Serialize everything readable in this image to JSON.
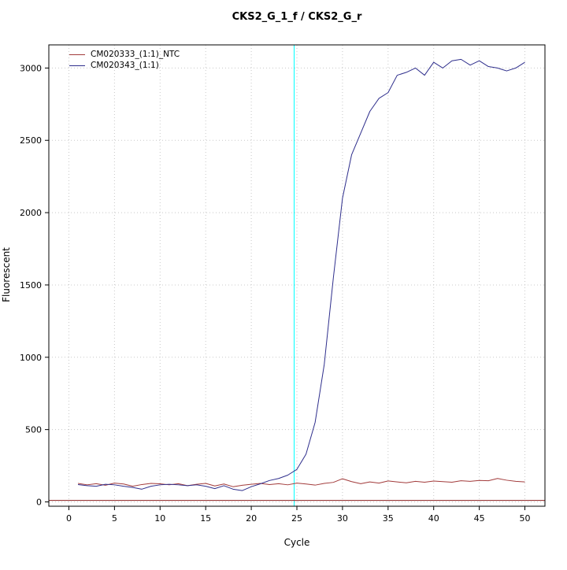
{
  "chart_data": {
    "type": "line",
    "title": "CKS2_G_1_f / CKS2_G_r",
    "xlabel": "Cycle",
    "ylabel": "Fluorescent",
    "xlim": [
      -2.2,
      52.2
    ],
    "ylim": [
      -30,
      3160
    ],
    "xticks": [
      0,
      5,
      10,
      15,
      20,
      25,
      30,
      35,
      40,
      45,
      50
    ],
    "yticks": [
      0,
      500,
      1000,
      1500,
      2000,
      2500,
      3000
    ],
    "grid": "dotted",
    "grid_color": "#c8c8c8",
    "legend_position": "top-left",
    "threshold_line": {
      "y": 10,
      "color": "#8b2020"
    },
    "ct_line": {
      "x": 24.7,
      "color": "#00ffff"
    },
    "x": [
      1,
      2,
      3,
      4,
      5,
      6,
      7,
      8,
      9,
      10,
      11,
      12,
      13,
      14,
      15,
      16,
      17,
      18,
      19,
      20,
      21,
      22,
      23,
      24,
      25,
      26,
      27,
      28,
      29,
      30,
      31,
      32,
      33,
      34,
      35,
      36,
      37,
      38,
      39,
      40,
      41,
      42,
      43,
      44,
      45,
      46,
      47,
      48,
      49,
      50
    ],
    "series": [
      {
        "name": "CM020333_(1:1)_NTC",
        "color": "#a23b3b",
        "values": [
          128,
          118,
          126,
          115,
          130,
          124,
          108,
          120,
          128,
          125,
          118,
          126,
          112,
          122,
          128,
          110,
          124,
          105,
          115,
          122,
          128,
          120,
          126,
          118,
          130,
          124,
          116,
          128,
          135,
          160,
          140,
          126,
          138,
          130,
          145,
          138,
          132,
          142,
          136,
          144,
          140,
          136,
          146,
          142,
          148,
          146,
          162,
          150,
          142,
          138
        ]
      },
      {
        "name": "CM020343_(1:1)",
        "color": "#2e2e8c",
        "values": [
          120,
          112,
          108,
          122,
          118,
          108,
          100,
          88,
          108,
          118,
          122,
          118,
          112,
          118,
          108,
          92,
          112,
          88,
          78,
          105,
          125,
          148,
          162,
          185,
          225,
          330,
          550,
          950,
          1550,
          2100,
          2400,
          2550,
          2700,
          2790,
          2830,
          2950,
          2970,
          3000,
          2950,
          3040,
          3000,
          3050,
          3060,
          3020,
          3050,
          3010,
          3000,
          2980,
          3000,
          3040
        ]
      }
    ]
  }
}
